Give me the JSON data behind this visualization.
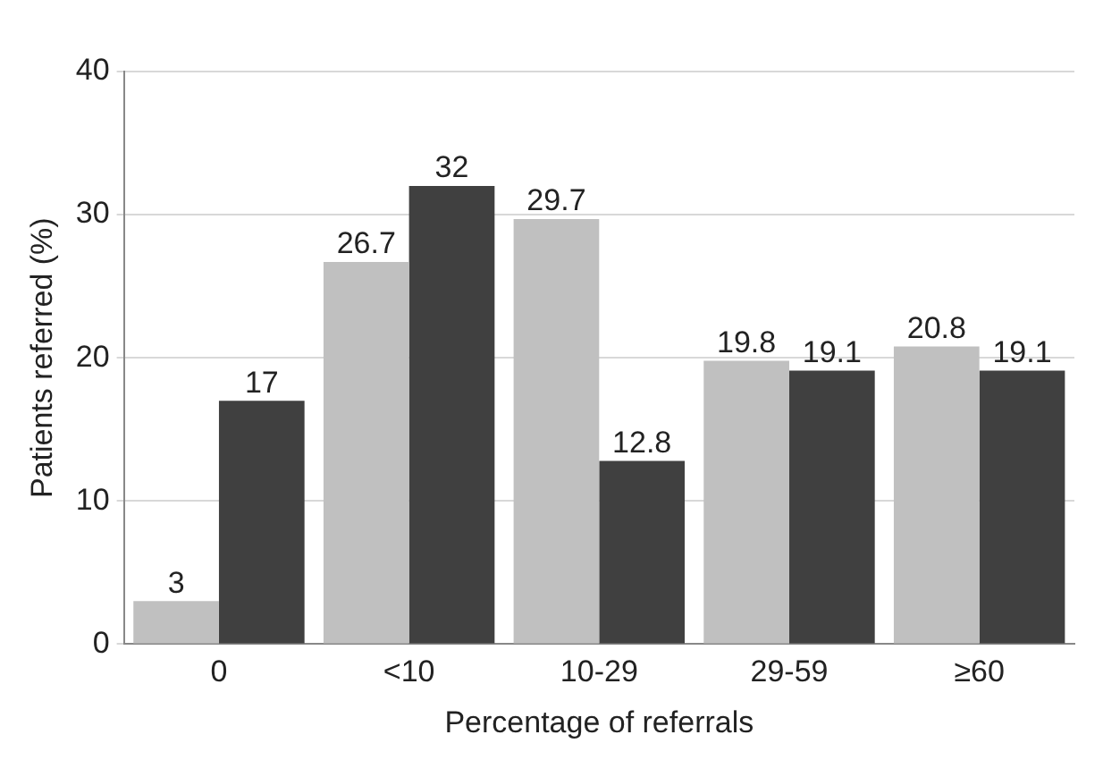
{
  "chart_data": {
    "type": "bar",
    "xlabel": "Percentage of referrals",
    "ylabel": "Patients referred (%)",
    "categories": [
      "0",
      "<10",
      "10-29",
      "29-59",
      "≥60"
    ],
    "series": [
      {
        "color": "#c0c0c0",
        "values": [
          3,
          26.7,
          29.7,
          19.8,
          20.8
        ]
      },
      {
        "color": "#404040",
        "values": [
          17,
          32,
          12.8,
          19.1,
          19.1
        ]
      }
    ],
    "ylim": [
      0,
      40
    ],
    "yticks": [
      0,
      10,
      20,
      30,
      40
    ],
    "grid": "y",
    "data_labels": true,
    "legend": false
  }
}
